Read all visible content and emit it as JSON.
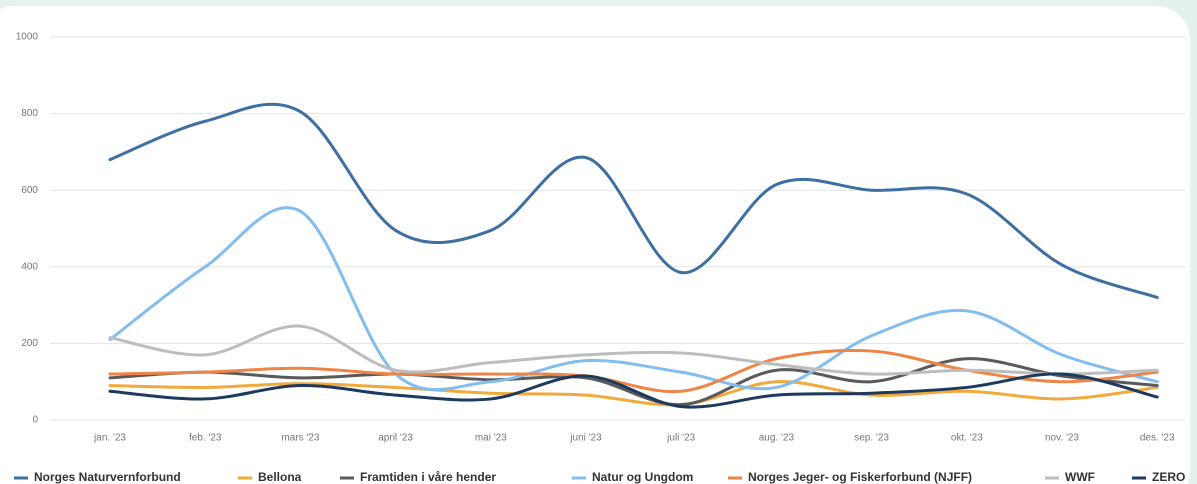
{
  "chart_data": {
    "type": "line",
    "categories": [
      "jan. '23",
      "feb. '23",
      "mars '23",
      "april '23",
      "mai '23",
      "juni '23",
      "juli '23",
      "aug. '23",
      "sep. '23",
      "okt. '23",
      "nov. '23",
      "des. '23"
    ],
    "series": [
      {
        "name": "Norges Naturvernforbund",
        "color": "#3d6fa3",
        "values": [
          680,
          780,
          805,
          495,
          495,
          685,
          385,
          615,
          600,
          590,
          405,
          320
        ]
      },
      {
        "name": "Bellona",
        "color": "#f2a93b",
        "values": [
          90,
          85,
          95,
          85,
          70,
          65,
          40,
          100,
          65,
          75,
          55,
          85
        ]
      },
      {
        "name": "Framtiden i våre hender",
        "color": "#5a5a5a",
        "values": [
          110,
          125,
          110,
          120,
          105,
          110,
          40,
          130,
          100,
          160,
          115,
          90
        ]
      },
      {
        "name": "Natur og Ungdom",
        "color": "#82bdf0",
        "values": [
          210,
          400,
          545,
          120,
          100,
          155,
          125,
          85,
          220,
          285,
          170,
          100
        ]
      },
      {
        "name": "Norges Jeger- og Fiskerforbund (NJFF)",
        "color": "#ee8446",
        "values": [
          120,
          125,
          135,
          120,
          120,
          115,
          75,
          160,
          180,
          130,
          100,
          125
        ]
      },
      {
        "name": "WWF",
        "color": "#bdbdbd",
        "values": [
          215,
          170,
          245,
          130,
          150,
          170,
          175,
          145,
          120,
          130,
          120,
          130
        ]
      },
      {
        "name": "ZERO",
        "color": "#1c3a5e",
        "values": [
          75,
          55,
          90,
          65,
          55,
          115,
          35,
          65,
          70,
          85,
          120,
          60
        ]
      }
    ],
    "ylim": [
      0,
      1000
    ],
    "yticks": [
      0,
      200,
      400,
      600,
      800,
      1000
    ],
    "grid": true
  }
}
